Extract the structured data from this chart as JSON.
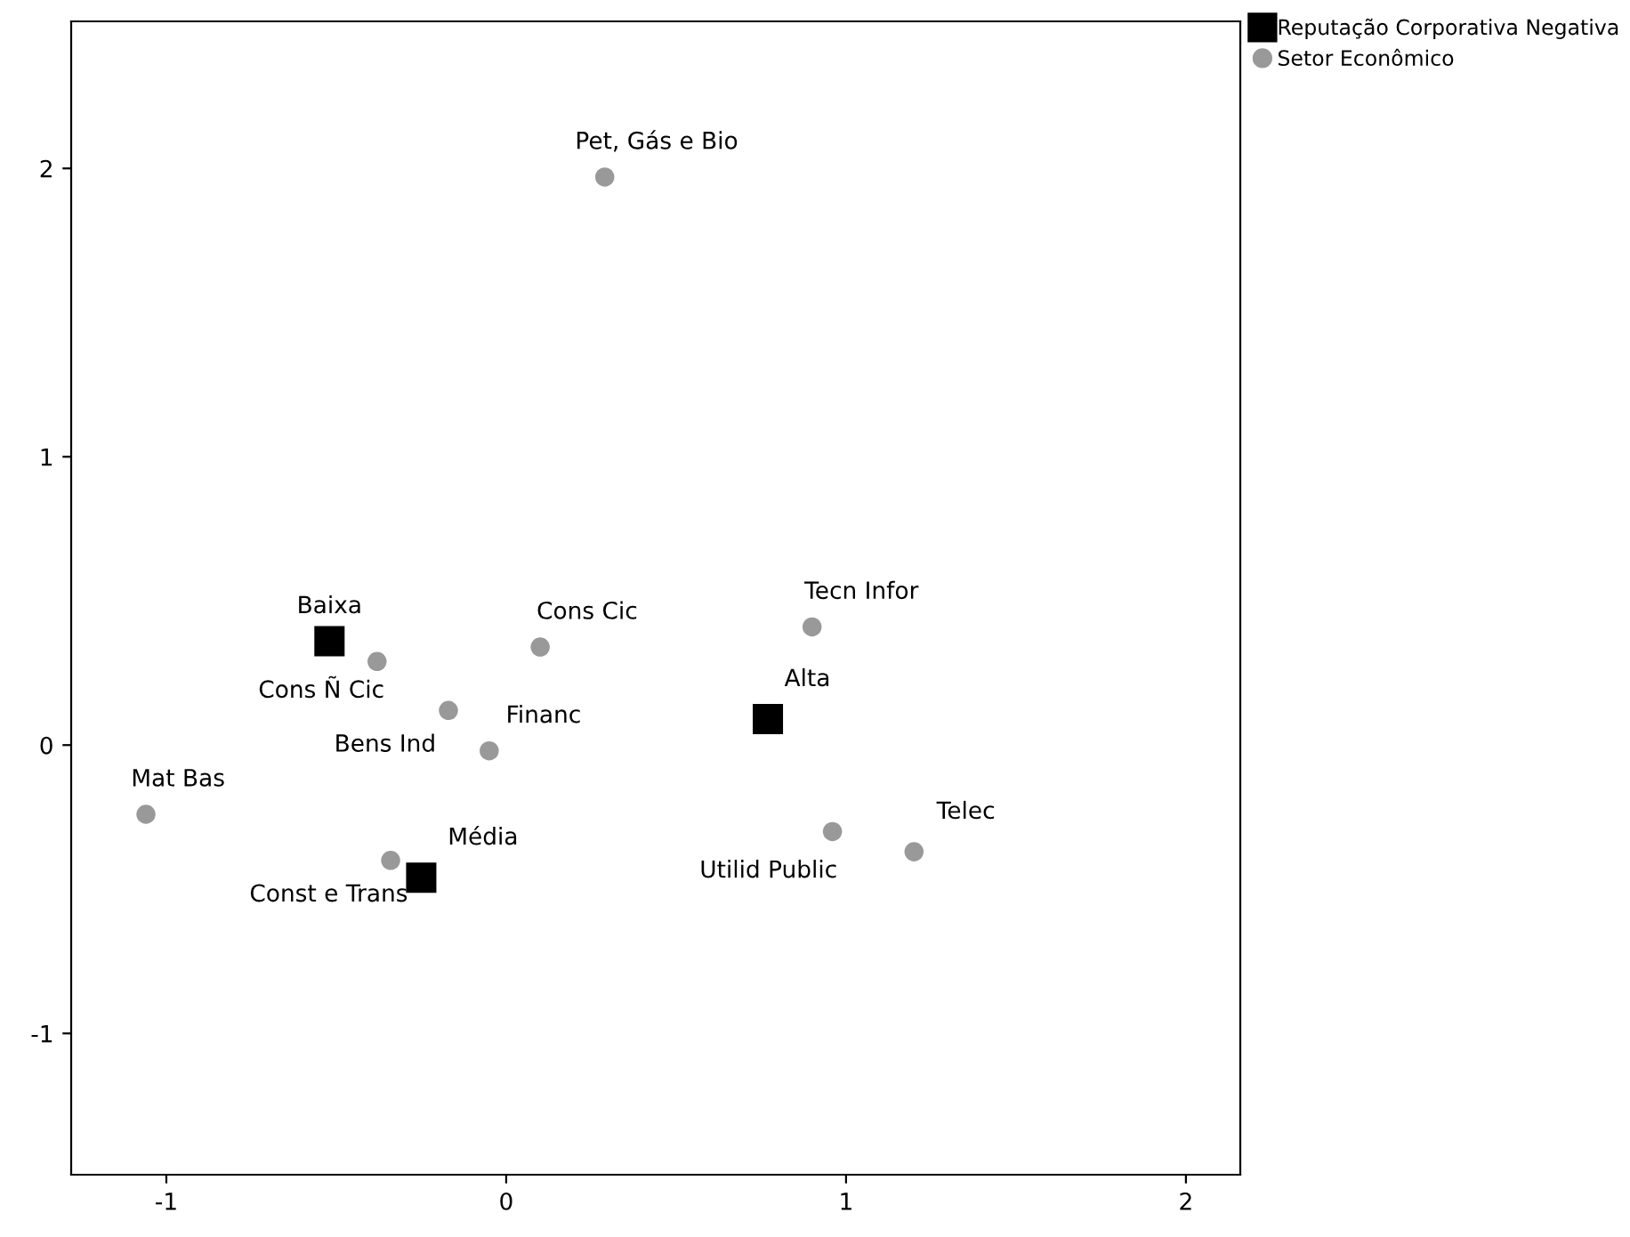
{
  "chart_data": {
    "type": "scatter",
    "xlim": [
      -1.28,
      2.16
    ],
    "ylim": [
      -1.49,
      2.51
    ],
    "xticks": [
      -1,
      0,
      1,
      2
    ],
    "yticks": [
      -1,
      0,
      1,
      2
    ],
    "grid": false,
    "legend": "top right",
    "series": [
      {
        "name": "Reputação Corporativa Negativa",
        "color": "#000000",
        "marker": "square",
        "x": [
          -0.52,
          0.77,
          -0.25
        ],
        "values": [
          0.36,
          0.09,
          -0.46
        ]
      },
      {
        "name": "Setor Econômico",
        "color": "#999999",
        "marker": "circle",
        "x": [
          0.29,
          0.1,
          0.9,
          -0.38,
          -0.17,
          -0.05,
          -1.06,
          -0.34,
          0.96,
          1.2
        ],
        "values": [
          1.97,
          0.34,
          0.41,
          0.29,
          0.12,
          -0.02,
          -0.24,
          -0.4,
          -0.3,
          -0.37
        ]
      }
    ],
    "annotations": [
      {
        "text": "Baixa",
        "x": -0.52,
        "y": 0.36
      },
      {
        "text": "Alta",
        "x": 0.77,
        "y": 0.09
      },
      {
        "text": "Média",
        "x": -0.25,
        "y": -0.46
      },
      {
        "text": "Pet, Gás e Bio",
        "x": 0.29,
        "y": 1.97
      },
      {
        "text": "Cons Cic",
        "x": 0.1,
        "y": 0.34
      },
      {
        "text": "Tecn Infor",
        "x": 0.9,
        "y": 0.41
      },
      {
        "text": "Cons Ñ Cic",
        "x": -0.38,
        "y": 0.29
      },
      {
        "text": "Bens Ind",
        "x": -0.17,
        "y": 0.12
      },
      {
        "text": "Financ",
        "x": -0.05,
        "y": -0.02
      },
      {
        "text": "Mat Bas",
        "x": -1.06,
        "y": -0.24
      },
      {
        "text": "Const e Trans",
        "x": -0.34,
        "y": -0.4
      },
      {
        "text": "Utilid Public",
        "x": 0.96,
        "y": -0.3
      },
      {
        "text": "Telec",
        "x": 1.2,
        "y": -0.37
      }
    ]
  }
}
